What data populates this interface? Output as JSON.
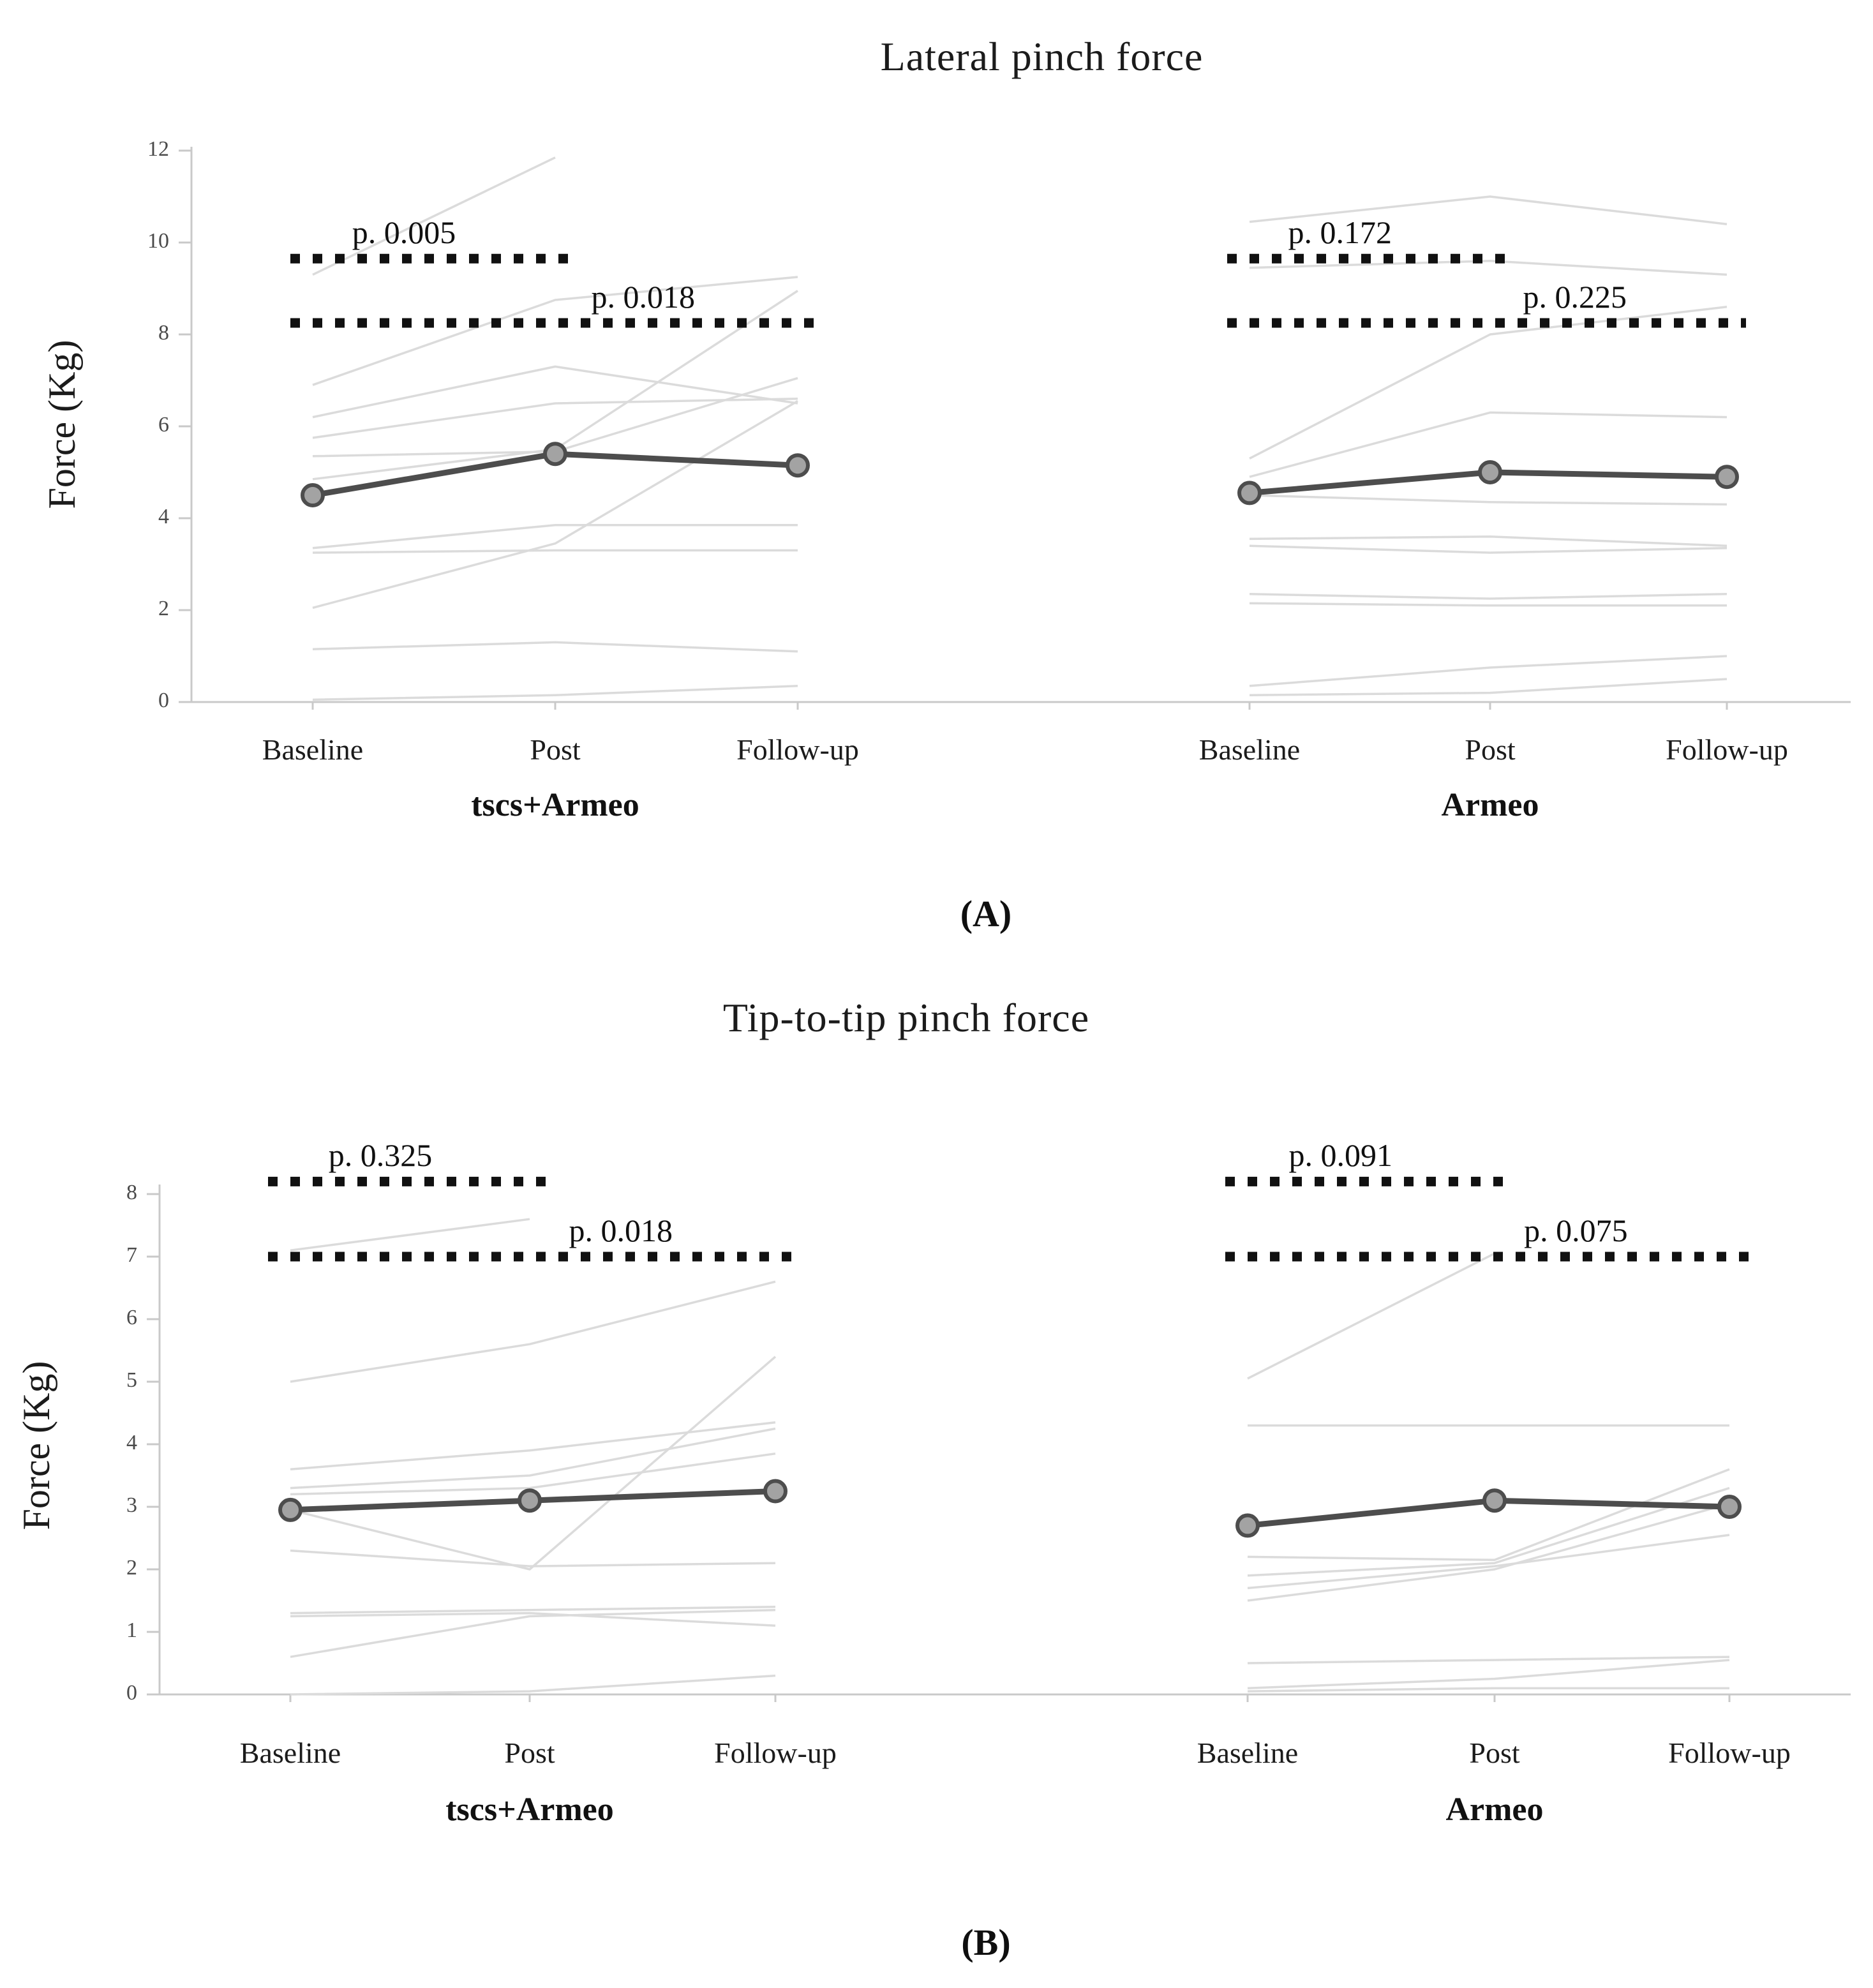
{
  "figure": {
    "background": "#ffffff",
    "panel_a_letter": "(A)",
    "panel_b_letter": "(B)"
  },
  "styles": {
    "mean_line_color": "#4d4d4d",
    "marker_fill": "#a3a3a3",
    "marker_stroke": "#4d4d4d",
    "subject_line_color": "#dbdbdb",
    "p_line_color": "#111111",
    "axis_color": "#c9c9c9",
    "text_color": "#1b1b1b",
    "tick_text_color": "#4a4a4a"
  },
  "chart_data": [
    {
      "type": "line",
      "panel_label": "(A)",
      "title": "Lateral pinch force",
      "ylabel": "Force (Kg)",
      "ylim": [
        0,
        12
      ],
      "yticks": [
        0,
        2,
        4,
        6,
        8,
        10,
        12
      ],
      "categories": [
        "Baseline",
        "Post",
        "Follow-up"
      ],
      "grid": false,
      "legend": "none",
      "groups": [
        {
          "label": "tscs+Armeo",
          "p_annotations": [
            {
              "label": "p. 0.005",
              "y": 9.65,
              "from": 0,
              "to": 1
            },
            {
              "label": "p. 0.018",
              "y": 8.25,
              "from": 0,
              "to": 2
            }
          ],
          "mean_series": [
            4.5,
            5.4,
            5.15
          ],
          "subject_series": [
            [
              9.3,
              11.85,
              null
            ],
            [
              6.9,
              8.75,
              9.25
            ],
            [
              6.2,
              7.3,
              6.5
            ],
            [
              5.75,
              6.5,
              6.6
            ],
            [
              5.35,
              5.45,
              7.05
            ],
            [
              4.85,
              5.5,
              8.95
            ],
            [
              3.35,
              3.85,
              3.85
            ],
            [
              3.25,
              3.3,
              3.3
            ],
            [
              2.05,
              3.45,
              6.55
            ],
            [
              1.15,
              1.3,
              1.1
            ],
            [
              0.05,
              0.15,
              0.35
            ]
          ]
        },
        {
          "label": "Armeo",
          "p_annotations": [
            {
              "label": "p. 0.172",
              "y": 9.65,
              "from": 0,
              "to": 1
            },
            {
              "label": "p. 0.225",
              "y": 8.25,
              "from": 0,
              "to": 2
            }
          ],
          "mean_series": [
            4.55,
            5.0,
            4.9
          ],
          "subject_series": [
            [
              10.45,
              11.0,
              10.4
            ],
            [
              9.45,
              9.6,
              9.3
            ],
            [
              5.3,
              8.0,
              8.6
            ],
            [
              4.9,
              6.3,
              6.2
            ],
            [
              4.5,
              4.35,
              4.3
            ],
            [
              3.55,
              3.6,
              3.4
            ],
            [
              3.4,
              3.25,
              3.35
            ],
            [
              2.35,
              2.25,
              2.35
            ],
            [
              2.15,
              2.1,
              2.1
            ],
            [
              0.35,
              0.75,
              1.0
            ],
            [
              0.15,
              0.2,
              0.5
            ]
          ]
        }
      ]
    },
    {
      "type": "line",
      "panel_label": "(B)",
      "title": "Tip-to-tip pinch force",
      "ylabel": "Force (Kg)",
      "ylim": [
        0,
        8
      ],
      "yticks": [
        0,
        1,
        2,
        3,
        4,
        5,
        6,
        7,
        8
      ],
      "categories": [
        "Baseline",
        "Post",
        "Follow-up"
      ],
      "grid": false,
      "legend": "none",
      "groups": [
        {
          "label": "tscs+Armeo",
          "p_annotations": [
            {
              "label": "p. 0.325",
              "y": 8.2,
              "from": 0,
              "to": 1
            },
            {
              "label": "p. 0.018",
              "y": 7.0,
              "from": 0,
              "to": 2
            }
          ],
          "mean_series": [
            2.95,
            3.1,
            3.25
          ],
          "subject_series": [
            [
              7.1,
              7.6,
              null
            ],
            [
              5.0,
              5.6,
              6.6
            ],
            [
              3.6,
              3.9,
              4.35
            ],
            [
              3.3,
              3.5,
              4.25
            ],
            [
              3.2,
              3.3,
              3.85
            ],
            [
              2.95,
              2.0,
              5.4
            ],
            [
              2.3,
              2.05,
              2.1
            ],
            [
              1.3,
              1.35,
              1.4
            ],
            [
              1.25,
              1.3,
              1.1
            ],
            [
              0.6,
              1.25,
              1.35
            ],
            [
              0.0,
              0.05,
              0.3
            ]
          ]
        },
        {
          "label": "Armeo",
          "p_annotations": [
            {
              "label": "p. 0.091",
              "y": 8.2,
              "from": 0,
              "to": 1
            },
            {
              "label": "p. 0.075",
              "y": 7.0,
              "from": 0,
              "to": 2
            }
          ],
          "mean_series": [
            2.7,
            3.1,
            3.0
          ],
          "subject_series": [
            [
              5.05,
              7.05,
              null
            ],
            [
              4.3,
              4.3,
              4.3
            ],
            [
              2.2,
              2.15,
              3.6
            ],
            [
              1.9,
              2.1,
              3.3
            ],
            [
              1.7,
              2.05,
              2.55
            ],
            [
              1.5,
              2.0,
              3.05
            ],
            [
              0.5,
              0.55,
              0.6
            ],
            [
              0.1,
              0.25,
              0.55
            ],
            [
              0.05,
              0.1,
              0.1
            ]
          ]
        }
      ]
    }
  ]
}
